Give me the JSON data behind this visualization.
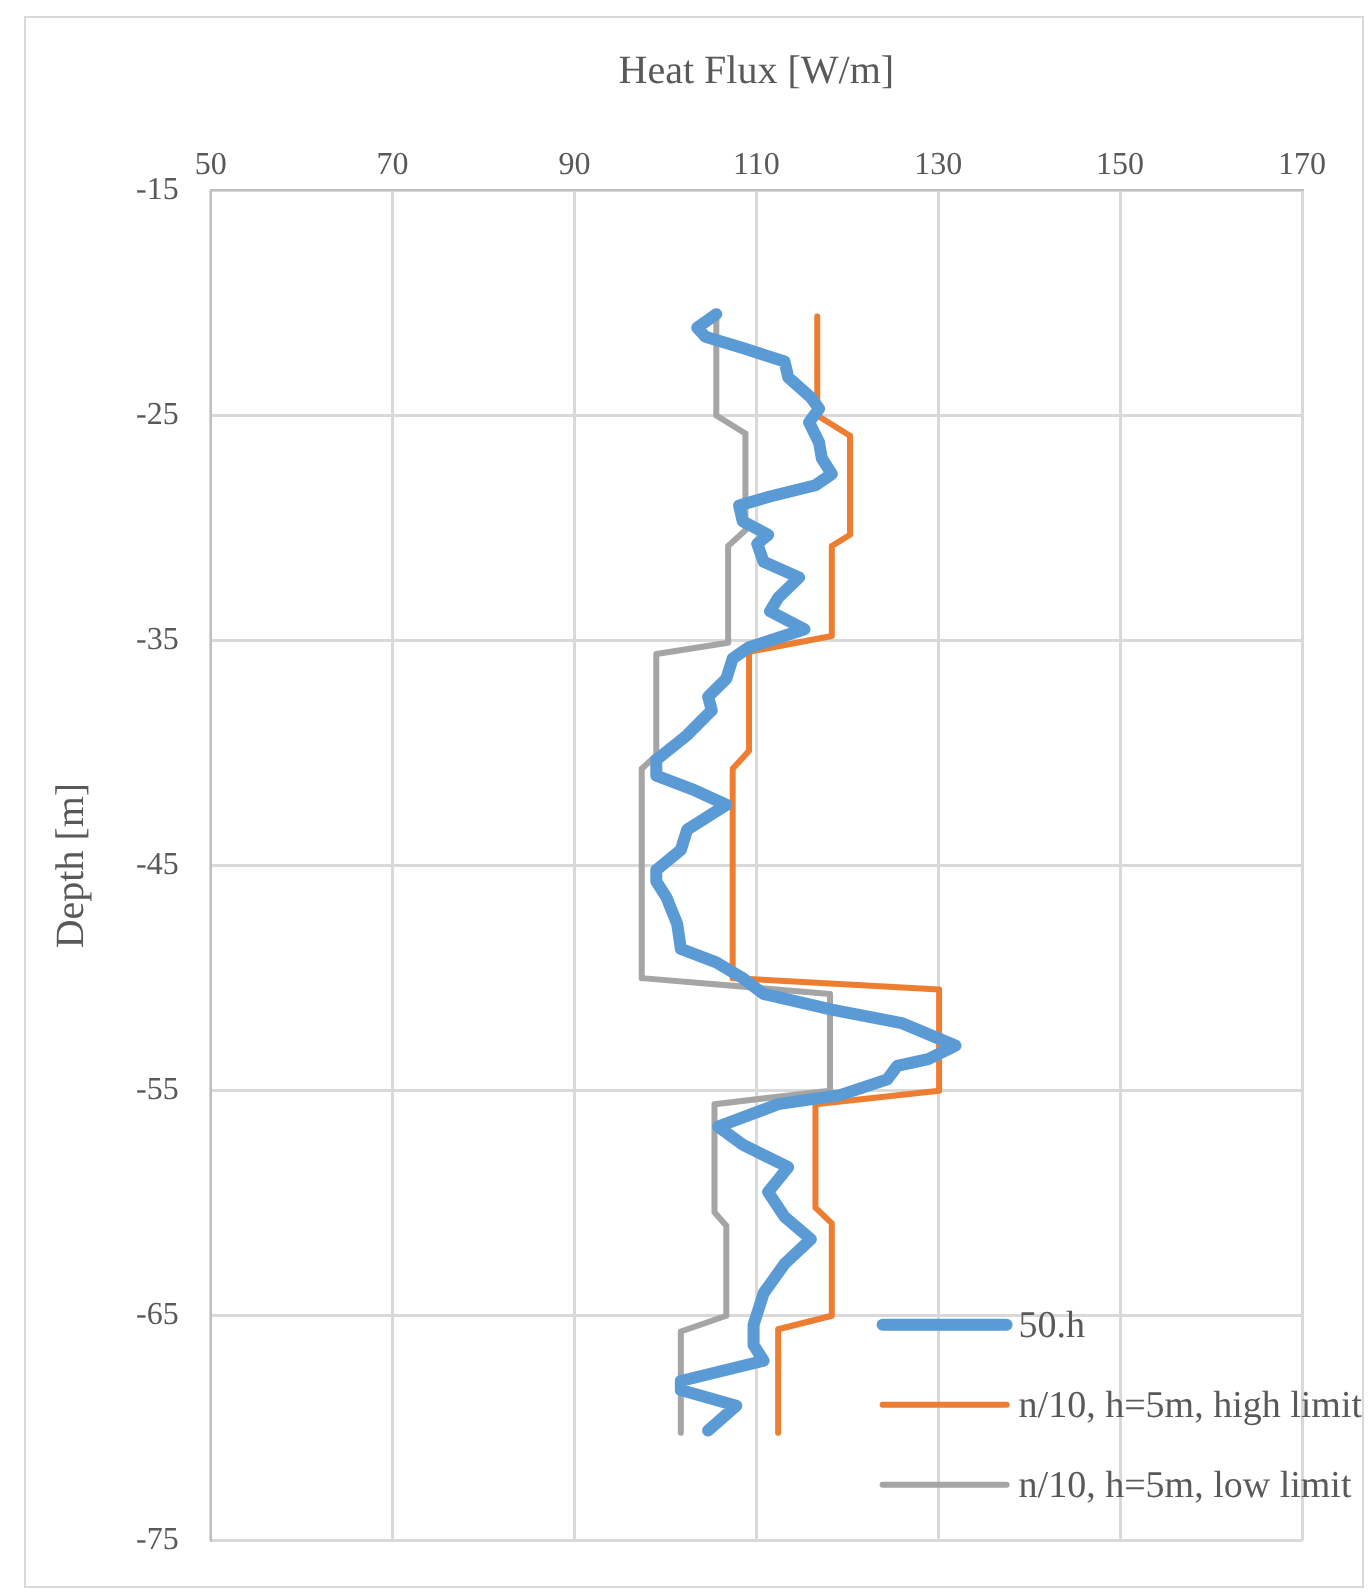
{
  "chart_data": {
    "type": "line",
    "xlabel": "Heat Flux [W/m]",
    "ylabel": "Depth [m]",
    "xlim": [
      50,
      170
    ],
    "xticks": [
      50,
      70,
      90,
      110,
      130,
      150,
      170
    ],
    "ylim": [
      -75,
      -15
    ],
    "yticks": [
      -75,
      -65,
      -55,
      -45,
      -35,
      -25,
      -15
    ],
    "grid": true,
    "legend": "bottom right",
    "line_style": "solid",
    "series": [
      {
        "name": "50.h",
        "color": "#5b9bd5",
        "x": [
          105.6,
          103.5,
          104.4,
          108.5,
          113.1,
          113.5,
          116.0,
          116.9,
          115.8,
          116.9,
          117.2,
          118.3,
          116.5,
          111.5,
          108.1,
          108.5,
          111.3,
          110.1,
          110.8,
          114.7,
          112.4,
          111.5,
          115.3,
          109.2,
          107.4,
          106.7,
          104.7,
          105.1,
          102.4,
          99.0,
          99.0,
          102.9,
          106.7,
          102.4,
          101.7,
          99.0,
          99.0,
          100.1,
          101.3,
          101.7,
          105.6,
          108.5,
          110.8,
          118.3,
          126.0,
          131.9,
          128.9,
          125.5,
          124.4,
          119.2,
          112.4,
          105.8,
          108.5,
          113.5,
          111.3,
          113.1,
          116.0,
          113.1,
          110.8,
          109.7,
          109.7,
          110.8,
          101.7,
          101.7,
          107.8,
          104.7
        ],
        "values": [
          -20.5,
          -21.1,
          -21.5,
          -22.0,
          -22.6,
          -23.3,
          -24.2,
          -24.7,
          -25.3,
          -26.2,
          -26.9,
          -27.6,
          -28.1,
          -28.6,
          -29.0,
          -29.7,
          -30.3,
          -30.7,
          -31.5,
          -32.2,
          -33.1,
          -33.7,
          -34.5,
          -35.3,
          -35.8,
          -36.7,
          -37.5,
          -38.1,
          -39.2,
          -40.3,
          -41.0,
          -41.6,
          -42.3,
          -43.4,
          -44.3,
          -45.2,
          -45.7,
          -46.4,
          -47.6,
          -48.7,
          -49.3,
          -50.0,
          -50.7,
          -51.4,
          -52.0,
          -53.0,
          -53.6,
          -53.9,
          -54.5,
          -55.2,
          -55.6,
          -56.6,
          -57.4,
          -58.4,
          -59.5,
          -60.6,
          -61.6,
          -62.7,
          -64.0,
          -65.4,
          -66.3,
          -67.0,
          -67.9,
          -68.3,
          -69.0,
          -70.1
        ]
      },
      {
        "name": "n/10, h=5m, high limit",
        "color": "#ed7d31",
        "x": [
          116.7,
          116.7,
          120.3,
          120.3,
          118.3,
          118.3,
          109.2,
          109.2,
          107.4,
          107.4,
          130.1,
          130.1,
          116.5,
          116.5,
          118.3,
          118.3,
          112.4,
          112.4
        ],
        "values": [
          -20.6,
          -25.0,
          -25.9,
          -30.3,
          -30.8,
          -34.8,
          -35.5,
          -39.9,
          -40.7,
          -50.0,
          -50.5,
          -55.0,
          -55.6,
          -60.2,
          -60.9,
          -65.0,
          -65.6,
          -70.2
        ]
      },
      {
        "name": "n/10, h=5m, low limit",
        "color": "#a5a5a5",
        "x": [
          105.6,
          105.6,
          108.8,
          108.8,
          106.9,
          106.9,
          99.0,
          99.0,
          97.4,
          97.4,
          118.1,
          118.1,
          105.4,
          105.4,
          106.7,
          106.7,
          101.7,
          101.7
        ],
        "values": [
          -20.6,
          -25.0,
          -25.8,
          -30.1,
          -30.8,
          -35.1,
          -35.6,
          -40.1,
          -40.7,
          -50.0,
          -50.7,
          -55.0,
          -55.6,
          -60.4,
          -61.0,
          -65.0,
          -65.7,
          -70.2
        ]
      }
    ]
  }
}
